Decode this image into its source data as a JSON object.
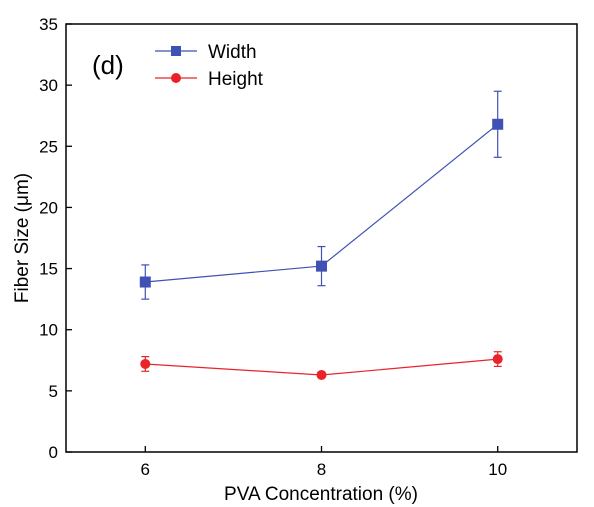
{
  "chart_data": {
    "type": "line",
    "panel_label": "(d)",
    "xlabel": "PVA Concentration (%)",
    "ylabel": "Fiber Size (μm)",
    "xlim": [
      5.1,
      10.9
    ],
    "ylim": [
      0,
      35
    ],
    "x_ticks": [
      6,
      8,
      10
    ],
    "x_tick_labels": [
      "6",
      "8",
      "10"
    ],
    "y_ticks": [
      0,
      5,
      10,
      15,
      20,
      25,
      30,
      35
    ],
    "y_tick_labels": [
      "0",
      "5",
      "10",
      "15",
      "20",
      "25",
      "30",
      "35"
    ],
    "legend_position": "top-left",
    "grid": false,
    "x": [
      6,
      8,
      10
    ],
    "series": [
      {
        "name": "Width",
        "color": "#3f51b5",
        "marker": "square",
        "values": [
          13.9,
          15.2,
          26.8
        ],
        "errors": [
          1.4,
          1.6,
          2.7
        ]
      },
      {
        "name": "Height",
        "color": "#e8242a",
        "marker": "circle",
        "values": [
          7.2,
          6.3,
          7.6
        ],
        "errors": [
          0.6,
          0.2,
          0.6
        ]
      }
    ]
  }
}
